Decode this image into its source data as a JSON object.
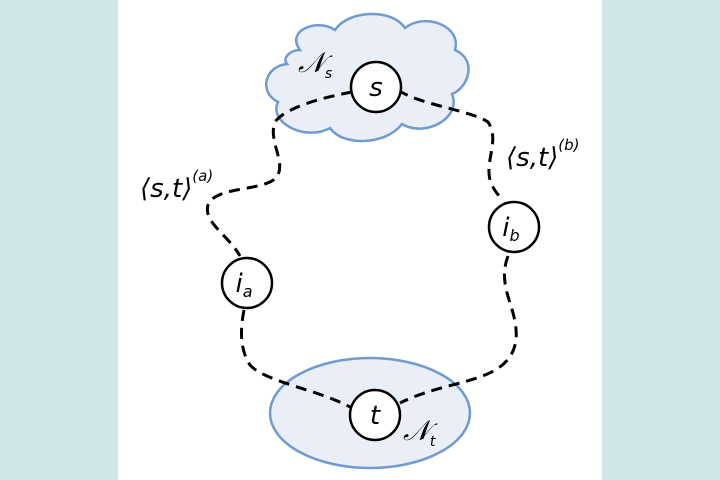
{
  "nodes": {
    "s": {
      "label": "s"
    },
    "t": {
      "label": "t"
    },
    "ia": {
      "label": "i",
      "sub": "a"
    },
    "ib": {
      "label": "i",
      "sub": "b"
    }
  },
  "regions": {
    "source": {
      "symbol": "𝒩",
      "sub": "s"
    },
    "target": {
      "symbol": "𝒩",
      "sub": "t"
    }
  },
  "paths": {
    "a": {
      "label": "⟨s,t⟩",
      "sup": "(a)"
    },
    "b": {
      "label": "⟨s,t⟩",
      "sup": "(b)"
    }
  },
  "colors": {
    "background": "#cfe7e9",
    "panel": "#ffffff",
    "region_fill": "#e9eef7",
    "region_stroke": "#6f9bd1"
  }
}
